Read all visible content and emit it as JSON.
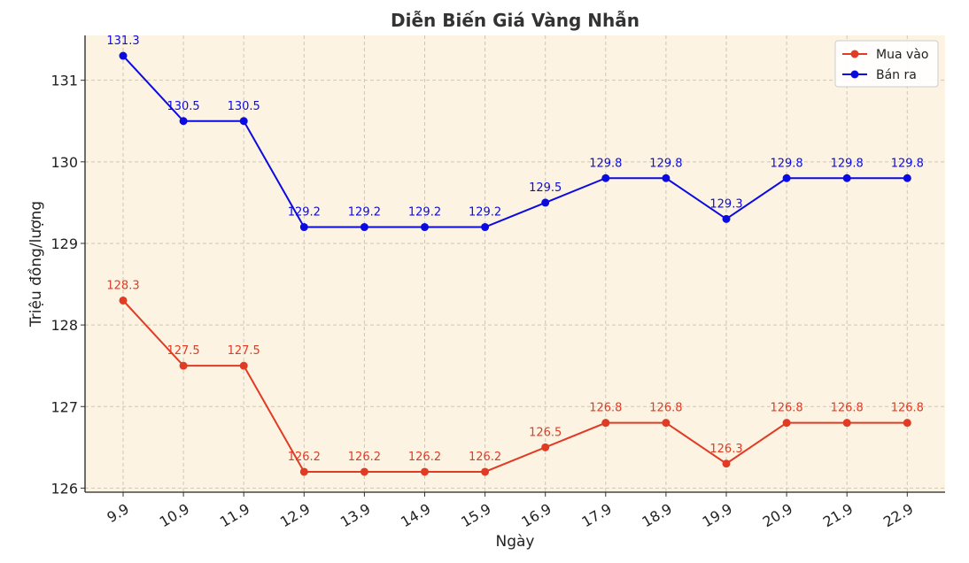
{
  "chart_data": {
    "type": "line",
    "title": "Diễn Biến Giá Vàng Nhẫn",
    "xlabel": "Ngày",
    "ylabel": "Triệu đồng/lượng",
    "categories": [
      "9.9",
      "10.9",
      "11.9",
      "12.9",
      "13.9",
      "14.9",
      "15.9",
      "16.9",
      "17.9",
      "18.9",
      "19.9",
      "20.9",
      "21.9",
      "22.9"
    ],
    "ylim": [
      125.95,
      131.55
    ],
    "yticks": [
      126,
      127,
      128,
      129,
      130,
      131
    ],
    "grid": true,
    "legend_position": "top-right",
    "background_color": "#fdf3e3",
    "series": [
      {
        "name": "Mua vào",
        "color": "#e03b24",
        "values": [
          128.3,
          127.5,
          127.5,
          126.2,
          126.2,
          126.2,
          126.2,
          126.5,
          126.8,
          126.8,
          126.3,
          126.8,
          126.8,
          126.8
        ],
        "labels": [
          "128.3",
          "127.5",
          "127.5",
          "126.2",
          "126.2",
          "126.2",
          "126.2",
          "126.5",
          "126.8",
          "126.8",
          "126.3",
          "126.8",
          "126.8",
          "126.8"
        ]
      },
      {
        "name": "Bán ra",
        "color": "#0b0be0",
        "values": [
          131.3,
          130.5,
          130.5,
          129.2,
          129.2,
          129.2,
          129.2,
          129.5,
          129.8,
          129.8,
          129.3,
          129.8,
          129.8,
          129.8
        ],
        "labels": [
          "131.3",
          "130.5",
          "130.5",
          "129.2",
          "129.2",
          "129.2",
          "129.2",
          "129.5",
          "129.8",
          "129.8",
          "129.3",
          "129.8",
          "129.8",
          "129.8"
        ]
      }
    ]
  }
}
